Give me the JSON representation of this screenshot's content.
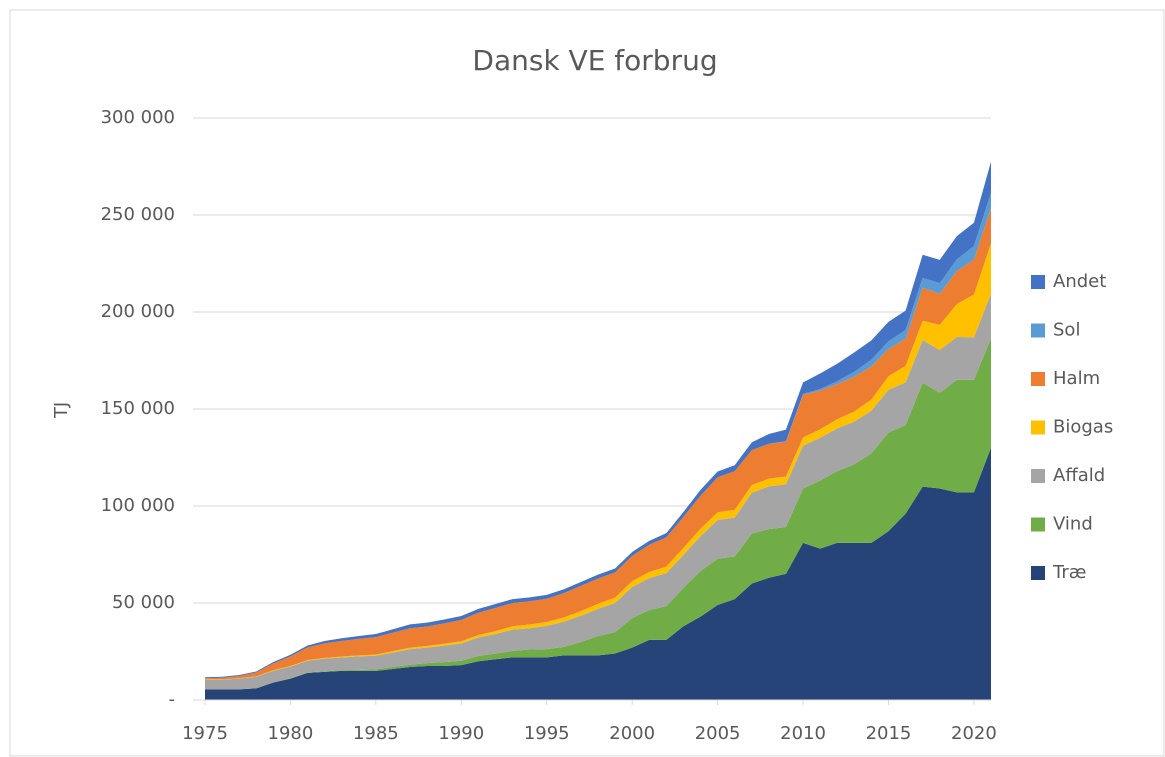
{
  "chart_data": {
    "type": "stacked_area",
    "title": "Dansk VE forbrug",
    "y_label": "TJ",
    "x": [
      1975,
      1976,
      1977,
      1978,
      1979,
      1980,
      1981,
      1982,
      1983,
      1984,
      1985,
      1986,
      1987,
      1988,
      1989,
      1990,
      1991,
      1992,
      1993,
      1994,
      1995,
      1996,
      1997,
      1998,
      1999,
      2000,
      2001,
      2002,
      2003,
      2004,
      2005,
      2006,
      2007,
      2008,
      2009,
      2010,
      2011,
      2012,
      2013,
      2014,
      2015,
      2016,
      2017,
      2018,
      2019,
      2020,
      2021
    ],
    "xlim": [
      1975,
      2021
    ],
    "xticks": [
      1975,
      1980,
      1985,
      1990,
      1995,
      2000,
      2005,
      2010,
      2015,
      2020
    ],
    "ylim": [
      0,
      300000
    ],
    "yticks": [
      {
        "value": 0,
        "label": "-"
      },
      {
        "value": 50000,
        "label": "50 000"
      },
      {
        "value": 100000,
        "label": "100 000"
      },
      {
        "value": 150000,
        "label": "150 000"
      },
      {
        "value": 200000,
        "label": "200 000"
      },
      {
        "value": 250000,
        "label": "250 000"
      },
      {
        "value": 300000,
        "label": "300 000"
      }
    ],
    "grid": true,
    "legend": "right",
    "series": [
      {
        "name": "Træ",
        "color": "#264478",
        "values": [
          5500,
          5500,
          5500,
          6000,
          9000,
          11000,
          14000,
          14500,
          15000,
          15000,
          15000,
          16000,
          17000,
          17500,
          17500,
          18000,
          20000,
          21000,
          22000,
          22000,
          22000,
          23000,
          23000,
          23000,
          24000,
          27000,
          31000,
          31000,
          38000,
          43000,
          49000,
          52000,
          60000,
          63000,
          65000,
          81000,
          78000,
          81000,
          81000,
          81000,
          87000,
          96000,
          110000,
          109000,
          107000,
          107000,
          130000
        ]
      },
      {
        "name": "Vind",
        "color": "#70ad47",
        "values": [
          0,
          0,
          0,
          0,
          100,
          200,
          200,
          300,
          400,
          500,
          800,
          1000,
          1200,
          1500,
          2000,
          2200,
          2700,
          3000,
          3300,
          4000,
          4200,
          4400,
          6900,
          10000,
          11000,
          15300,
          15300,
          17400,
          19800,
          23500,
          23800,
          22000,
          25800,
          25100,
          24200,
          28100,
          35100,
          37000,
          40500,
          46100,
          50900,
          45700,
          53500,
          49400,
          58100,
          58000,
          56500
        ]
      },
      {
        "name": "Affald",
        "color": "#a5a5a5",
        "values": [
          5000,
          5000,
          5500,
          6000,
          6000,
          6000,
          6000,
          6500,
          6500,
          7000,
          7000,
          7500,
          8000,
          8000,
          8500,
          9000,
          9500,
          10000,
          11000,
          11000,
          12000,
          13000,
          13500,
          14000,
          15000,
          16000,
          16500,
          17000,
          17000,
          18000,
          20000,
          20000,
          21000,
          22000,
          22000,
          22000,
          22000,
          22000,
          22000,
          22000,
          22000,
          22000,
          22000,
          22000,
          22000,
          22000,
          23000
        ]
      },
      {
        "name": "Biogas",
        "color": "#ffc000",
        "values": [
          200,
          200,
          200,
          200,
          300,
          300,
          400,
          400,
          500,
          500,
          600,
          700,
          800,
          900,
          1000,
          1100,
          1300,
          1500,
          1700,
          1900,
          2000,
          2200,
          2400,
          2600,
          2800,
          3000,
          3200,
          3400,
          3600,
          3800,
          4000,
          4000,
          4000,
          4000,
          4000,
          4200,
          4400,
          4800,
          5200,
          5800,
          7000,
          8500,
          10000,
          13000,
          17000,
          22000,
          26000
        ]
      },
      {
        "name": "Halm",
        "color": "#ed7d31",
        "values": [
          500,
          800,
          1200,
          2000,
          3500,
          5000,
          6500,
          7500,
          8000,
          8500,
          9000,
          9500,
          10000,
          10000,
          10500,
          11000,
          11500,
          12000,
          12000,
          12000,
          12000,
          12500,
          13000,
          13000,
          13000,
          13000,
          14000,
          15000,
          16000,
          17000,
          18000,
          20000,
          18000,
          18000,
          18000,
          22000,
          20000,
          18000,
          18000,
          17000,
          14000,
          14000,
          17000,
          16000,
          17000,
          18000,
          18000
        ]
      },
      {
        "name": "Sol",
        "color": "#5b9bd5",
        "values": [
          0,
          0,
          0,
          0,
          0,
          0,
          0,
          0,
          0,
          0,
          0,
          0,
          0,
          0,
          0,
          0,
          0,
          0,
          0,
          0,
          0,
          0,
          0,
          0,
          0,
          0,
          0,
          0,
          0,
          0,
          0,
          0,
          0,
          0,
          200,
          400,
          800,
          1500,
          2500,
          3500,
          4000,
          4500,
          5000,
          5500,
          6000,
          7000,
          8000
        ]
      },
      {
        "name": "Andet",
        "color": "#4472c4",
        "values": [
          500,
          500,
          500,
          500,
          700,
          800,
          1000,
          1200,
          1400,
          1500,
          1600,
          1800,
          2000,
          2000,
          2000,
          2000,
          2000,
          2000,
          2000,
          2000,
          2000,
          2000,
          2000,
          2000,
          2000,
          2000,
          2000,
          2200,
          2500,
          3000,
          3000,
          3000,
          4000,
          5000,
          6000,
          6000,
          8000,
          9000,
          10000,
          10000,
          10000,
          10000,
          12000,
          12000,
          12000,
          12000,
          16000
        ]
      }
    ]
  }
}
